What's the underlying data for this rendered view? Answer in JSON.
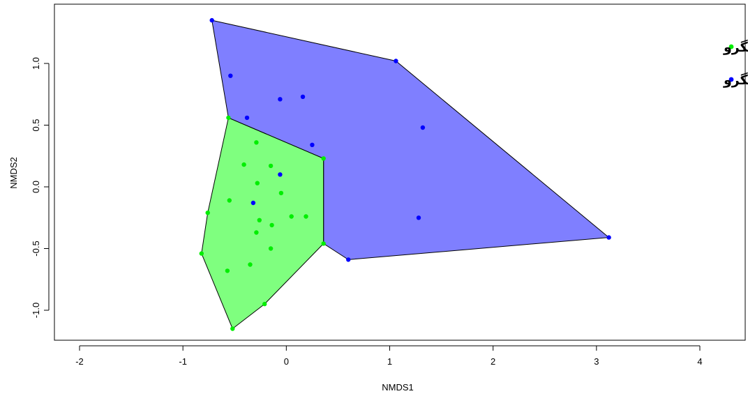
{
  "chart_data": {
    "type": "scatter",
    "title": "",
    "xlabel": "NMDS1",
    "ylabel": "NMDS2",
    "xlim": [
      -2.3,
      4.3
    ],
    "ylim": [
      -1.25,
      1.42
    ],
    "x_ticks": [
      -2,
      -1,
      0,
      1,
      2,
      3,
      4
    ],
    "x_tick_labels": [
      "-2",
      "-1",
      "0",
      "1",
      "2",
      "3",
      "4"
    ],
    "y_ticks": [
      -1.0,
      -0.5,
      0.0,
      0.5,
      1.0
    ],
    "y_tick_labels": [
      "-1.0",
      "-0.5",
      "0.0",
      "0.5",
      "1.0"
    ],
    "grid": false,
    "legend_position": "top-right",
    "series": [
      {
        "name": "زیستگاه جزرومدی بدون مانگرو",
        "color": "#0000ff",
        "hull_fill": "#0000ff",
        "hull_opacity": 0.5,
        "points": [
          [
            -0.72,
            1.35
          ],
          [
            1.06,
            1.02
          ],
          [
            -0.54,
            0.9
          ],
          [
            -0.06,
            0.71
          ],
          [
            0.16,
            0.73
          ],
          [
            -0.38,
            0.56
          ],
          [
            1.32,
            0.48
          ],
          [
            0.25,
            0.34
          ],
          [
            -0.06,
            0.1
          ],
          [
            -0.32,
            -0.13
          ],
          [
            1.28,
            -0.25
          ],
          [
            3.12,
            -0.41
          ],
          [
            0.6,
            -0.59
          ]
        ],
        "hull": [
          [
            -0.72,
            1.35
          ],
          [
            1.06,
            1.02
          ],
          [
            3.12,
            -0.41
          ],
          [
            0.6,
            -0.59
          ],
          [
            0.36,
            -0.46
          ],
          [
            0.36,
            0.23
          ],
          [
            -0.56,
            0.56
          ]
        ]
      },
      {
        "name": "زیستگاه جزرومدی با مانگرو",
        "color": "#00ee00",
        "hull_fill": "#00ff00",
        "hull_opacity": 0.5,
        "points": [
          [
            -0.56,
            0.56
          ],
          [
            -0.29,
            0.36
          ],
          [
            -0.41,
            0.18
          ],
          [
            -0.15,
            0.17
          ],
          [
            0.36,
            0.23
          ],
          [
            -0.28,
            0.03
          ],
          [
            -0.05,
            -0.05
          ],
          [
            -0.55,
            -0.11
          ],
          [
            -0.76,
            -0.21
          ],
          [
            0.05,
            -0.24
          ],
          [
            0.19,
            -0.24
          ],
          [
            -0.26,
            -0.27
          ],
          [
            -0.14,
            -0.31
          ],
          [
            -0.29,
            -0.37
          ],
          [
            0.36,
            -0.46
          ],
          [
            -0.15,
            -0.5
          ],
          [
            -0.82,
            -0.54
          ],
          [
            -0.35,
            -0.63
          ],
          [
            -0.57,
            -0.68
          ],
          [
            -0.21,
            -0.95
          ],
          [
            -0.52,
            -1.15
          ]
        ],
        "hull": [
          [
            -0.56,
            0.56
          ],
          [
            0.36,
            0.23
          ],
          [
            0.36,
            -0.46
          ],
          [
            -0.21,
            -0.95
          ],
          [
            -0.52,
            -1.15
          ],
          [
            -0.82,
            -0.54
          ],
          [
            -0.76,
            -0.21
          ]
        ]
      }
    ],
    "legend": [
      {
        "label": "زیستگاه جزرومدی با مانگرو",
        "color": "#00ee00"
      },
      {
        "label": "زیستگاه جزرومدی بدون مانگرو",
        "color": "#0000ff"
      }
    ]
  }
}
